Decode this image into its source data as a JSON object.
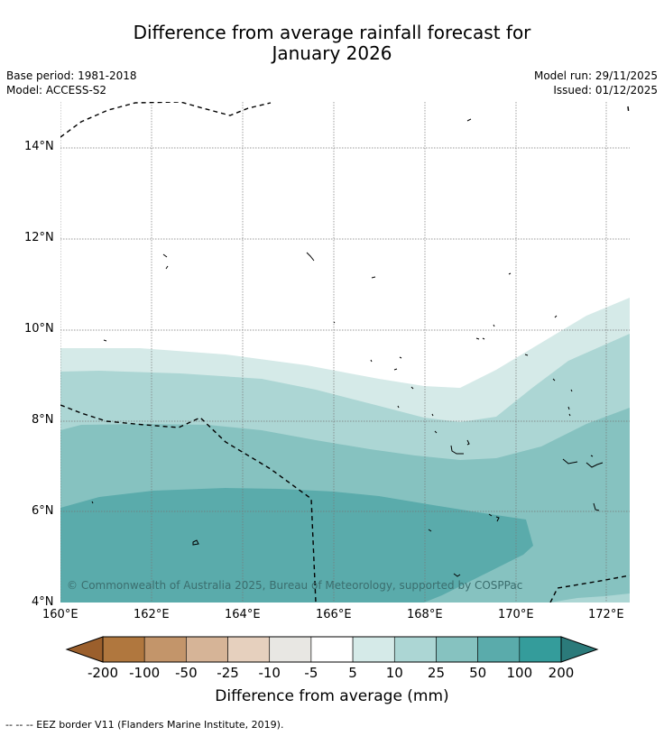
{
  "title": {
    "line1": "Difference from average rainfall forecast for",
    "line2": "January 2026"
  },
  "meta": {
    "base_period": "Base period: 1981-2018",
    "model": "Model: ACCESS-S2",
    "model_run": "Model run: 29/11/2025",
    "issued": "Issued: 01/12/2025"
  },
  "map": {
    "lat_labels": [
      "14°N",
      "12°N",
      "10°N",
      "8°N",
      "6°N",
      "4°N"
    ],
    "lon_labels": [
      "160°E",
      "162°E",
      "164°E",
      "166°E",
      "168°E",
      "170°E",
      "172°E"
    ],
    "copyright": "© Commonwealth of Australia 2025, Bureau of Meteorology, supported by COSPPac"
  },
  "colorbar": {
    "colors": [
      "#9b5f2c",
      "#b0773e",
      "#c3956a",
      "#d6b497",
      "#e6d0be",
      "#e8e7e3",
      "#ffffff",
      "#d5eae8",
      "#acd6d4",
      "#86c2c0",
      "#5aabab",
      "#349c9b",
      "#2b7a7a"
    ],
    "tick_labels": [
      "-200",
      "-100",
      "-50",
      "-25",
      "-10",
      "-5",
      "5",
      "10",
      "25",
      "50",
      "100",
      "200"
    ],
    "title": "Difference from average (mm)"
  },
  "footnote": "--  --  -- EEZ border V11 (Flanders Marine Institute, 2019)."
}
